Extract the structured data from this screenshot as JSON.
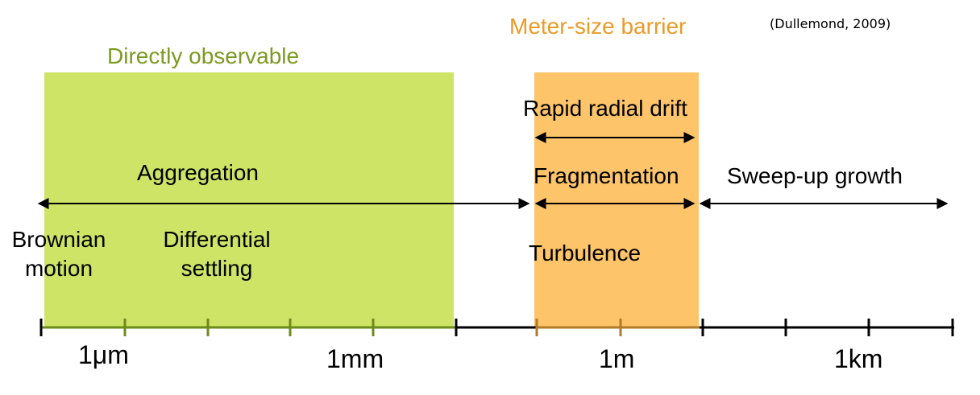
{
  "citation": "(Dullemond, 2009)",
  "regions": {
    "observable": {
      "label": "Directly observable",
      "color": "#cde466",
      "label_color": "#7c9a22"
    },
    "barrier": {
      "label": "Meter-size barrier",
      "color": "#fdc46a",
      "label_color": "#ea9b28"
    }
  },
  "processes": {
    "aggregation": "Aggregation",
    "brownian": [
      "Brownian",
      "motion"
    ],
    "differential": [
      "Differential",
      "settling"
    ],
    "radial_drift": "Rapid radial drift",
    "fragmentation": "Fragmentation",
    "turbulence": "Turbulence",
    "sweep_up": "Sweep-up growth"
  },
  "axis": {
    "labels": [
      "1μm",
      "1mm",
      "1m",
      "1km"
    ]
  }
}
